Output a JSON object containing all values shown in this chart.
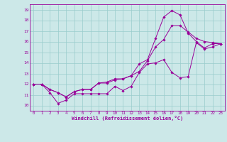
{
  "xlabel": "Windchill (Refroidissement éolien,°C)",
  "bg_color": "#cce8e8",
  "grid_color": "#99cccc",
  "line_color": "#990099",
  "xlim": [
    -0.5,
    23.5
  ],
  "ylim": [
    9.5,
    19.5
  ],
  "xticks": [
    0,
    1,
    2,
    3,
    4,
    5,
    6,
    7,
    8,
    9,
    10,
    11,
    12,
    13,
    14,
    15,
    16,
    17,
    18,
    19,
    20,
    21,
    22,
    23
  ],
  "yticks": [
    10,
    11,
    12,
    13,
    14,
    15,
    16,
    17,
    18,
    19
  ],
  "line1_x": [
    0,
    1,
    2,
    3,
    4,
    5,
    6,
    7,
    8,
    9,
    10,
    11,
    12,
    13,
    14,
    15,
    16,
    17,
    18,
    19,
    20,
    21,
    22,
    23
  ],
  "line1_y": [
    12,
    12,
    11.5,
    11.2,
    10.8,
    11.3,
    11.5,
    11.5,
    12.1,
    12.2,
    12.5,
    12.5,
    12.8,
    13.2,
    14.2,
    15.5,
    16.2,
    17.5,
    17.5,
    16.9,
    16.3,
    16.0,
    15.9,
    15.8
  ],
  "line2_x": [
    0,
    1,
    2,
    3,
    4,
    5,
    6,
    7,
    8,
    9,
    10,
    11,
    12,
    13,
    14,
    15,
    16,
    17,
    18,
    19,
    20,
    21,
    22,
    23
  ],
  "line2_y": [
    12,
    12,
    11.5,
    11.2,
    10.8,
    11.3,
    11.5,
    11.5,
    12.1,
    12.1,
    12.4,
    12.5,
    12.8,
    13.9,
    14.3,
    16.3,
    18.3,
    18.9,
    18.5,
    16.8,
    16.0,
    15.4,
    15.8,
    15.8
  ],
  "line3_x": [
    0,
    1,
    2,
    3,
    4,
    5,
    6,
    7,
    8,
    9,
    10,
    11,
    12,
    13,
    14,
    15,
    16,
    17,
    18,
    19,
    20,
    21,
    22,
    23
  ],
  "line3_y": [
    12,
    12,
    11.2,
    10.2,
    10.5,
    11.1,
    11.1,
    11.1,
    11.1,
    11.1,
    11.8,
    11.4,
    11.8,
    13.1,
    13.9,
    14.0,
    14.3,
    13.1,
    12.6,
    12.7,
    15.9,
    15.3,
    15.5,
    15.8
  ]
}
